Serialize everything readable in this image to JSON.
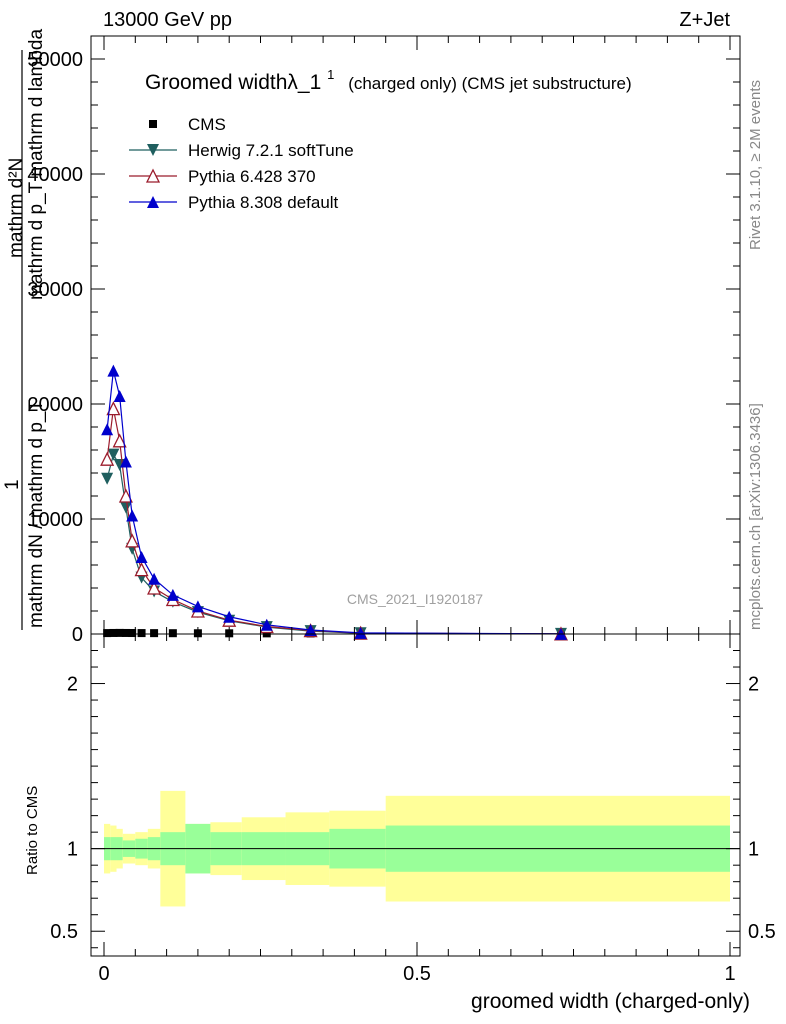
{
  "header": {
    "energy": "13000 GeV pp",
    "process": "Z+Jet"
  },
  "side": {
    "rivet": "Rivet 3.1.10, ≥ 2M events",
    "mcplots": "mcplots.cern.ch [arXiv:1306.3436]"
  },
  "watermark": "CMS_2021_I1920187",
  "colors": {
    "cms": "#000000",
    "herwig": "#1f5f5f",
    "pythia6": "#9b1c2c",
    "pythia8": "#0000cc",
    "band_inner": "#99ff99",
    "band_outer": "#ffff99"
  },
  "chart_data": [
    {
      "type": "line",
      "title": "Groomed widthλ_1",
      "title_sup": "1",
      "title_suffix": "(charged only) (CMS jet substructure)",
      "ylabel_top": "mathrm d²N",
      "ylabel_top2": "mathrm d p_T mathrm d lambda",
      "ylabel_bottom": "1",
      "ylabel_bottom2": "mathrm dN / mathrm d p_T",
      "xlim": [
        0,
        1
      ],
      "ylim": [
        0,
        52000
      ],
      "yticks": [
        {
          "v": 0,
          "label": "0"
        },
        {
          "v": 10000,
          "label": "10000"
        },
        {
          "v": 20000,
          "label": "20000"
        },
        {
          "v": 30000,
          "label": "30000"
        },
        {
          "v": 40000,
          "label": "40000"
        },
        {
          "v": 50000,
          "label": "50000"
        }
      ],
      "legend_position": "top-left",
      "series": [
        {
          "name": "CMS",
          "key": "cms",
          "marker": "square",
          "x": [
            0.005,
            0.015,
            0.025,
            0.035,
            0.045,
            0.06,
            0.08,
            0.11,
            0.15,
            0.2,
            0.26,
            0.33,
            0.41,
            0.73
          ],
          "y": [
            80,
            90,
            95,
            90,
            85,
            80,
            75,
            70,
            65,
            60,
            55,
            45,
            30,
            10
          ]
        },
        {
          "name": "Herwig 7.2.1 softTune",
          "key": "herwig",
          "marker": "triangle-down",
          "x": [
            0.005,
            0.015,
            0.025,
            0.035,
            0.045,
            0.06,
            0.08,
            0.11,
            0.15,
            0.2,
            0.26,
            0.33,
            0.41,
            0.73
          ],
          "y": [
            13500,
            15600,
            14700,
            11000,
            7400,
            4900,
            3700,
            2800,
            1900,
            1150,
            600,
            250,
            60,
            10
          ]
        },
        {
          "name": "Pythia 6.428 370",
          "key": "pythia6",
          "marker": "triangle-up-open",
          "x": [
            0.005,
            0.015,
            0.025,
            0.035,
            0.045,
            0.06,
            0.08,
            0.11,
            0.15,
            0.2,
            0.26,
            0.33,
            0.41,
            0.73
          ],
          "y": [
            15200,
            19600,
            16800,
            12000,
            8100,
            5600,
            4000,
            3000,
            2000,
            1200,
            650,
            300,
            80,
            10
          ]
        },
        {
          "name": "Pythia 8.308 default",
          "key": "pythia8",
          "marker": "triangle-up",
          "x": [
            0.005,
            0.015,
            0.025,
            0.035,
            0.045,
            0.06,
            0.08,
            0.11,
            0.15,
            0.2,
            0.26,
            0.33,
            0.41,
            0.73
          ],
          "y": [
            17800,
            22900,
            20700,
            15000,
            10300,
            6700,
            4800,
            3400,
            2400,
            1500,
            800,
            350,
            100,
            15
          ]
        }
      ]
    },
    {
      "type": "area",
      "ylabel": "Ratio to CMS",
      "xlabel": "groomed width (charged-only)",
      "xlim": [
        0,
        1
      ],
      "ylim": [
        0.35,
        2.3
      ],
      "xticks": [
        {
          "v": 0,
          "label": "0"
        },
        {
          "v": 0.5,
          "label": "0.5"
        },
        {
          "v": 1,
          "label": "1"
        }
      ],
      "yticks": [
        {
          "v": 0.5,
          "label": "0.5"
        },
        {
          "v": 1,
          "label": "1"
        },
        {
          "v": 2,
          "label": "2"
        }
      ],
      "bands": {
        "edges": [
          0,
          0.01,
          0.02,
          0.03,
          0.05,
          0.07,
          0.09,
          0.13,
          0.17,
          0.22,
          0.29,
          0.36,
          0.45,
          1.0
        ],
        "inner_lo": [
          0.93,
          0.93,
          0.93,
          0.95,
          0.94,
          0.93,
          0.9,
          0.85,
          0.9,
          0.9,
          0.9,
          0.88,
          0.86
        ],
        "inner_hi": [
          1.07,
          1.07,
          1.07,
          1.05,
          1.06,
          1.07,
          1.1,
          1.15,
          1.1,
          1.1,
          1.1,
          1.12,
          1.14
        ],
        "outer_lo": [
          0.85,
          0.86,
          0.88,
          0.91,
          0.9,
          0.88,
          0.65,
          0.85,
          0.84,
          0.81,
          0.78,
          0.77,
          0.68
        ],
        "outer_hi": [
          1.15,
          1.14,
          1.12,
          1.09,
          1.1,
          1.12,
          1.35,
          1.15,
          1.16,
          1.19,
          1.22,
          1.23,
          1.32
        ]
      }
    }
  ]
}
